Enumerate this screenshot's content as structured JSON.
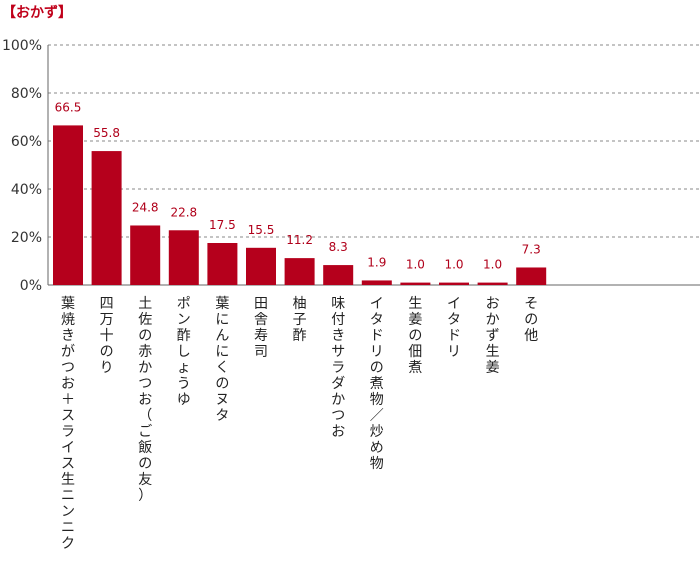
{
  "title": "【おかず】",
  "chart_data": {
    "type": "bar",
    "categories": [
      "葉焼きがつお＋スライス生ニンニク",
      "四万十のり",
      "土佐の赤かつお（ご飯の友）",
      "ポン酢しょうゆ",
      "葉にんにくのヌタ",
      "田舎寿司",
      "柚子酢",
      "味付きサラダかつお",
      "イタドリの煮物／炒め物",
      "生姜の佃煮",
      "イタドリ",
      "おかず生姜",
      "その他"
    ],
    "values": [
      66.5,
      55.8,
      24.8,
      22.8,
      17.5,
      15.5,
      11.2,
      8.3,
      1.9,
      1.0,
      1.0,
      1.0,
      7.3
    ],
    "value_labels": [
      "66.5",
      "55.8",
      "24.8",
      "22.8",
      "17.5",
      "15.5",
      "11.2",
      "8.3",
      "1.9",
      "1.0",
      "1.0",
      "1.0",
      "7.3"
    ],
    "yticks": [
      "0%",
      "20%",
      "40%",
      "60%",
      "80%",
      "100%"
    ],
    "ylim": [
      0,
      100
    ],
    "grid": true,
    "bar_color": "#b5001c",
    "label_color": "#b0001a"
  }
}
